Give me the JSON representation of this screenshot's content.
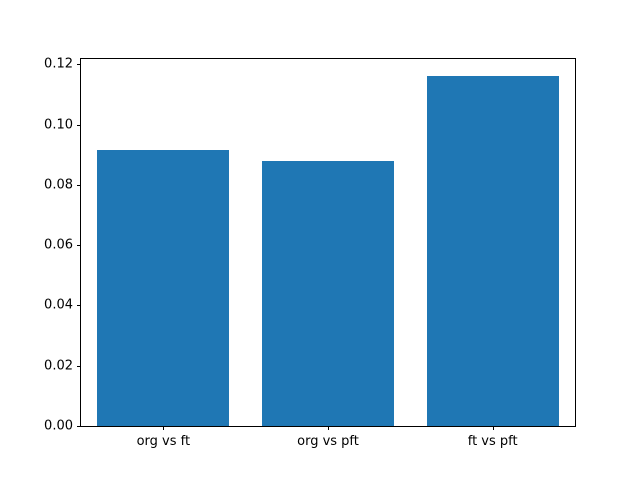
{
  "chart_data": {
    "type": "bar",
    "title": "",
    "xlabel": "",
    "ylabel": "",
    "categories": [
      "org vs ft",
      "org vs pft",
      "ft vs pft"
    ],
    "values": [
      0.0915,
      0.0878,
      0.116
    ],
    "ylim": [
      0,
      0.1218
    ],
    "yticks": [
      0.0,
      0.02,
      0.04,
      0.06,
      0.08,
      0.1,
      0.12
    ],
    "ytick_labels": [
      "0.00",
      "0.02",
      "0.04",
      "0.06",
      "0.08",
      "0.10",
      "0.12"
    ],
    "bar_width_fraction": 0.8,
    "bar_color": "#1f77b4",
    "axis_color": "#000000",
    "background_color": "#ffffff",
    "grid": false,
    "legend": "none"
  }
}
